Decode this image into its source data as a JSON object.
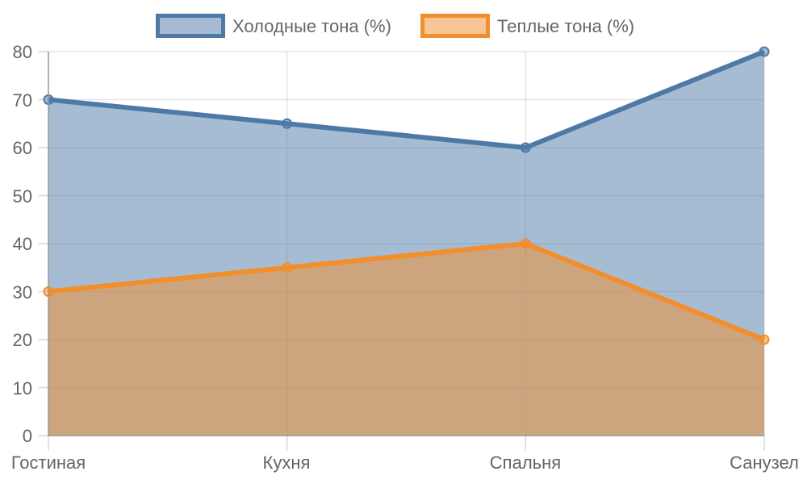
{
  "chart_data": {
    "type": "area",
    "title": "",
    "xlabel": "",
    "ylabel": "",
    "categories": [
      "Гостиная",
      "Кухня",
      "Спальня",
      "Санузел"
    ],
    "series": [
      {
        "name": "Холодные тона (%)",
        "values": [
          70,
          65,
          60,
          80
        ],
        "line_color": "#4e79a7",
        "fill_color": "#4e79a7",
        "fill_opacity": 0.5
      },
      {
        "name": "Теплые тона (%)",
        "values": [
          30,
          35,
          40,
          20
        ],
        "line_color": "#f28e2b",
        "fill_color": "#f28e2b",
        "fill_opacity": 0.5
      }
    ],
    "ylim": [
      0,
      80
    ],
    "yticks": [
      0,
      10,
      20,
      30,
      40,
      50,
      60,
      70,
      80
    ],
    "grid": true,
    "legend_position": "top"
  },
  "legend": {
    "items": [
      {
        "label": "Холодные тона (%)"
      },
      {
        "label": "Теплые тона (%)"
      }
    ]
  },
  "axes": {
    "y_ticks": [
      "0",
      "10",
      "20",
      "30",
      "40",
      "50",
      "60",
      "70",
      "80"
    ],
    "x_ticks": [
      "Гостиная",
      "Кухня",
      "Спальня",
      "Санузел"
    ]
  }
}
